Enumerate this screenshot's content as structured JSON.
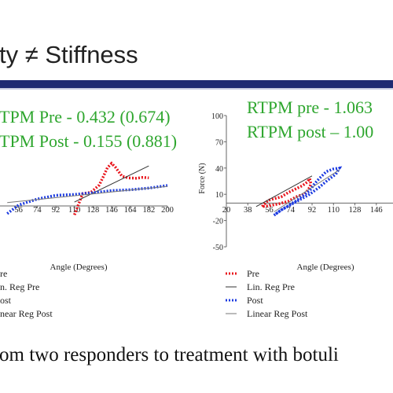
{
  "slide": {
    "title": "ty ≠ Stiffness",
    "caption": "om two responders to treatment with botuli"
  },
  "colors": {
    "pre": "#e8141b",
    "post": "#1c3be0",
    "stat_text": "#2ea62e",
    "title_bar": "#1f2a72"
  },
  "chart_data": [
    {
      "type": "line",
      "stats": [
        "TPM Pre - 0.432 (0.674)",
        "TPM Post - 0.155 (0.881)"
      ],
      "xlabel": "Angle (Degrees)",
      "xlim": [
        38,
        200
      ],
      "ylim": [
        -12,
        12
      ],
      "x_ticks": [
        56,
        74,
        92,
        110,
        128,
        146,
        164,
        182,
        200
      ],
      "x_tick_labels": [
        "56",
        "74",
        "92",
        "110",
        "128",
        "146",
        "164",
        "182",
        "200"
      ],
      "series": [
        {
          "name": "re",
          "style": "dotted-red",
          "x": [
            110,
            118,
            126,
            134,
            138,
            142,
            146,
            150,
            156,
            162,
            170,
            176,
            182
          ],
          "y": [
            -4.5,
            0.5,
            0.8,
            2.5,
            4.5,
            6.6,
            7.6,
            6.6,
            4.6,
            4.2,
            4.1,
            4.3,
            4.2
          ]
        },
        {
          "name": "n. Reg Pre",
          "style": "line-dark",
          "x": [
            110,
            182
          ],
          "y": [
            -1.5,
            7.0
          ]
        },
        {
          "name": "ost",
          "style": "dotted-blue",
          "x": [
            45,
            56,
            74,
            92,
            110,
            128,
            146,
            164,
            182,
            200
          ],
          "y": [
            -4.2,
            -2.2,
            -0.8,
            0.1,
            0.3,
            0.7,
            1.2,
            1.4,
            1.8,
            2.4
          ]
        },
        {
          "name": "near Reg Post",
          "style": "line-gray",
          "x": [
            45,
            200
          ],
          "y": [
            -1.6,
            2.2
          ]
        }
      ]
    },
    {
      "type": "line",
      "stats": [
        "RTPM pre - 1.063",
        "RTPM post – 1.00"
      ],
      "xlabel": "Angle (Degrees)",
      "ylabel": "Force (N)",
      "xlim": [
        20,
        160
      ],
      "ylim": [
        -50,
        100
      ],
      "x_ticks": [
        20,
        38,
        56,
        74,
        92,
        110,
        128,
        146
      ],
      "x_tick_labels": [
        "20",
        "38",
        "56",
        "74",
        "92",
        "110",
        "128",
        "146"
      ],
      "y_ticks": [
        -50,
        -20,
        10,
        40,
        70,
        100
      ],
      "y_tick_labels": [
        "-50",
        "-20",
        "10",
        "40",
        "70",
        "100"
      ],
      "series": [
        {
          "name": "Pre",
          "style": "dotted-red",
          "x": [
            50,
            55,
            60,
            66,
            72,
            78,
            84,
            88,
            90,
            91,
            90,
            86,
            80,
            72,
            64,
            56,
            50
          ],
          "y": [
            -4,
            3,
            5,
            7,
            12,
            16,
            20,
            24,
            28,
            22,
            18,
            10,
            8,
            2,
            -1,
            -3,
            -4
          ]
        },
        {
          "name": "Lin. Reg Pre",
          "style": "line-dark",
          "x": [
            45,
            92
          ],
          "y": [
            -4,
            31
          ]
        },
        {
          "name": "Post",
          "style": "dotted-blue",
          "x": [
            60,
            66,
            72,
            78,
            84,
            90,
            94,
            98,
            104,
            110,
            115,
            112,
            105,
            98,
            90,
            82,
            74,
            66,
            60
          ],
          "y": [
            -14,
            -8,
            -3,
            2,
            8,
            14,
            22,
            28,
            36,
            39,
            40,
            33,
            26,
            18,
            10,
            4,
            -2,
            -8,
            -14
          ]
        },
        {
          "name": "Linear Reg Post",
          "style": "line-gray",
          "x": [
            60,
            115
          ],
          "y": [
            -10,
            38
          ]
        }
      ]
    }
  ]
}
